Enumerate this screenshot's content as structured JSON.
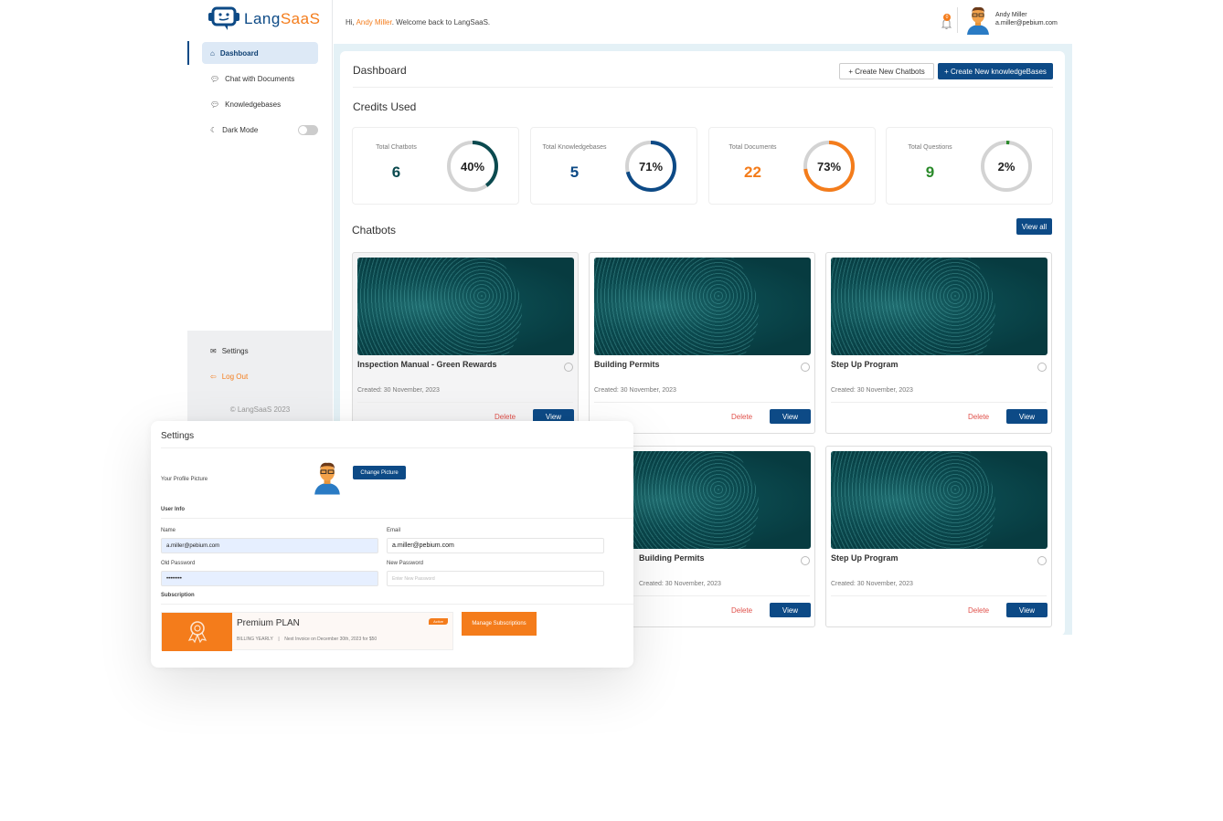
{
  "brand": {
    "name_part1": "Lang",
    "name_part2": "SaaS",
    "accent": "#f47c1b",
    "primary": "#0d4a86"
  },
  "sidebar": {
    "items": [
      {
        "label": "Dashboard",
        "icon": "home-icon",
        "active": true
      },
      {
        "label": "Chat with Documents",
        "icon": "chat-icon"
      },
      {
        "label": "Knowledgebases",
        "icon": "chat-icon"
      },
      {
        "label": "Dark Mode",
        "icon": "moon-icon",
        "toggle": false
      }
    ],
    "settings_label": "Settings",
    "logout_label": "Log Out",
    "footer": "© LangSaaS 2023"
  },
  "header": {
    "greeting_prefix": "Hi, ",
    "user_name": "Andy Miller",
    "greeting_suffix": ". Welcome back to LangSaaS.",
    "notification_count": "0",
    "profile_name": "Andy Miller",
    "profile_email": "a.miller@pebium.com"
  },
  "dashboard": {
    "title": "Dashboard",
    "create_chatbot": "+ Create New Chatbots",
    "create_kb": "+ Create New knowledgeBases",
    "credits_title": "Credits Used",
    "stats": [
      {
        "label": "Total Chatbots",
        "value": "6",
        "percent": 40,
        "percent_label": "40%",
        "color": "#0b4a4f"
      },
      {
        "label": "Total Knowledgebases",
        "value": "5",
        "percent": 71,
        "percent_label": "71%",
        "color": "#0d4a86"
      },
      {
        "label": "Total Documents",
        "value": "22",
        "percent": 73,
        "percent_label": "73%",
        "color": "#f47c1b"
      },
      {
        "label": "Total Questions",
        "value": "9",
        "percent": 2,
        "percent_label": "2%",
        "color": "#2a8a2a"
      }
    ],
    "chatbots_title": "Chatbots",
    "view_all": "View all",
    "chatbots": [
      {
        "title": "Inspection Manual - Green Rewards",
        "created": "Created: 30 November, 2023"
      },
      {
        "title": "Building Permits",
        "created": "Created: 30 November, 2023"
      },
      {
        "title": "Step Up Program",
        "created": "Created: 30 November, 2023"
      },
      {
        "title": "Building Permits",
        "created": "Created: 30 November, 2023"
      },
      {
        "title": "Step Up Program",
        "created": "Created: 30 November, 2023"
      }
    ],
    "delete_label": "Delete",
    "view_label": "View"
  },
  "settings": {
    "title": "Settings",
    "profile_picture_label": "Your Profile Picture",
    "change_picture": "Change Picture",
    "user_info": "User Info",
    "name_label": "Name",
    "name_value": "a.miller@pebium.com",
    "email_label": "Email",
    "email_value": "a.miller@pebium.com",
    "old_password_label": "Old Password",
    "old_password_value": "••••••••",
    "new_password_label": "New Password",
    "new_password_placeholder": "Enter New Password",
    "subscription": "Subscription",
    "plan": "Premium PLAN",
    "plan_status": "Active",
    "billing": "BILLING YEARLY",
    "separator": "|",
    "invoice": "Next Invoice on December 30th, 2023 for $50",
    "manage": "Manage Subscriptions"
  }
}
